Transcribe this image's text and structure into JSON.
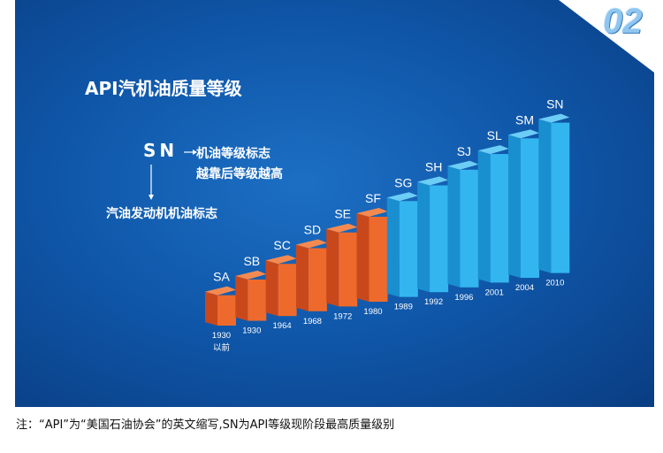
{
  "badge": "02",
  "title": "API汽机油质量等级",
  "legend": {
    "grade_example": "SN",
    "line1": "机油等级标志",
    "line2": "越靠后等级越高",
    "line3": "汽油发动机机油标志"
  },
  "footnote": "注：“API”为“美国石油协会”的英文缩写,SN为API等级现阶段最高质量级别",
  "colors": {
    "old_grades": "#e8612a",
    "current_grades": "#2fb0ec",
    "background": "#0f56a8"
  },
  "chart_data": {
    "type": "bar",
    "categories": [
      "SA",
      "SB",
      "SC",
      "SD",
      "SE",
      "SF",
      "SG",
      "SH",
      "SJ",
      "SL",
      "SM",
      "SN"
    ],
    "years": [
      "1930\n以前",
      "1930",
      "1964",
      "1968",
      "1972",
      "1980",
      "1989",
      "1992",
      "1996",
      "2001",
      "2004",
      "2010"
    ],
    "values": [
      1,
      2,
      3,
      4,
      5,
      6,
      7,
      8,
      9,
      10,
      11,
      12
    ],
    "title": "",
    "xlabel": "",
    "ylabel": ""
  }
}
